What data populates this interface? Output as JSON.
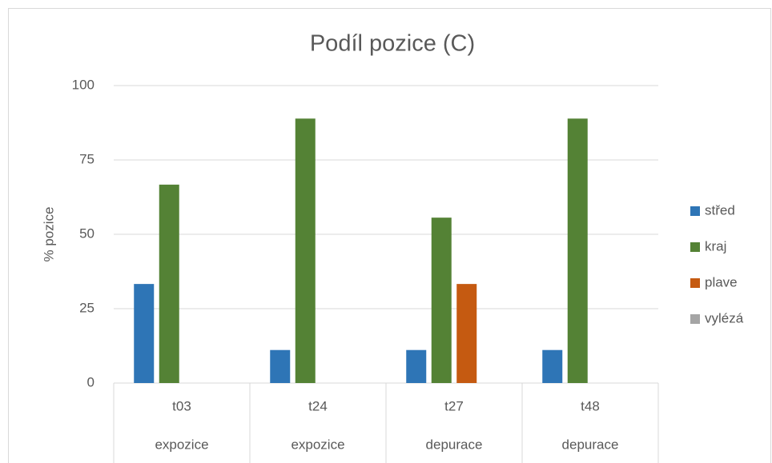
{
  "chart_data": {
    "type": "bar",
    "title": "Podíl pozice (C)",
    "y_label": "% pozice",
    "categories": [
      "t03",
      "t24",
      "t27",
      "t48"
    ],
    "groups": [
      "expozice",
      "expozice",
      "depurace",
      "depurace"
    ],
    "series": [
      {
        "name": "střed",
        "color": "#2e75b6",
        "values": [
          33.3,
          11.1,
          11.1,
          11.1
        ]
      },
      {
        "name": "kraj",
        "color": "#548235",
        "values": [
          66.7,
          88.9,
          55.6,
          88.9
        ]
      },
      {
        "name": "plave",
        "color": "#c55a11",
        "values": [
          0,
          0,
          33.3,
          0
        ]
      },
      {
        "name": "vylézá",
        "color": "#a5a5a5",
        "values": [
          0,
          0,
          0,
          0
        ]
      }
    ],
    "ylim": [
      0,
      100
    ],
    "yticks": [
      0,
      25,
      50,
      75,
      100
    ],
    "grid": true,
    "legend": "right"
  }
}
